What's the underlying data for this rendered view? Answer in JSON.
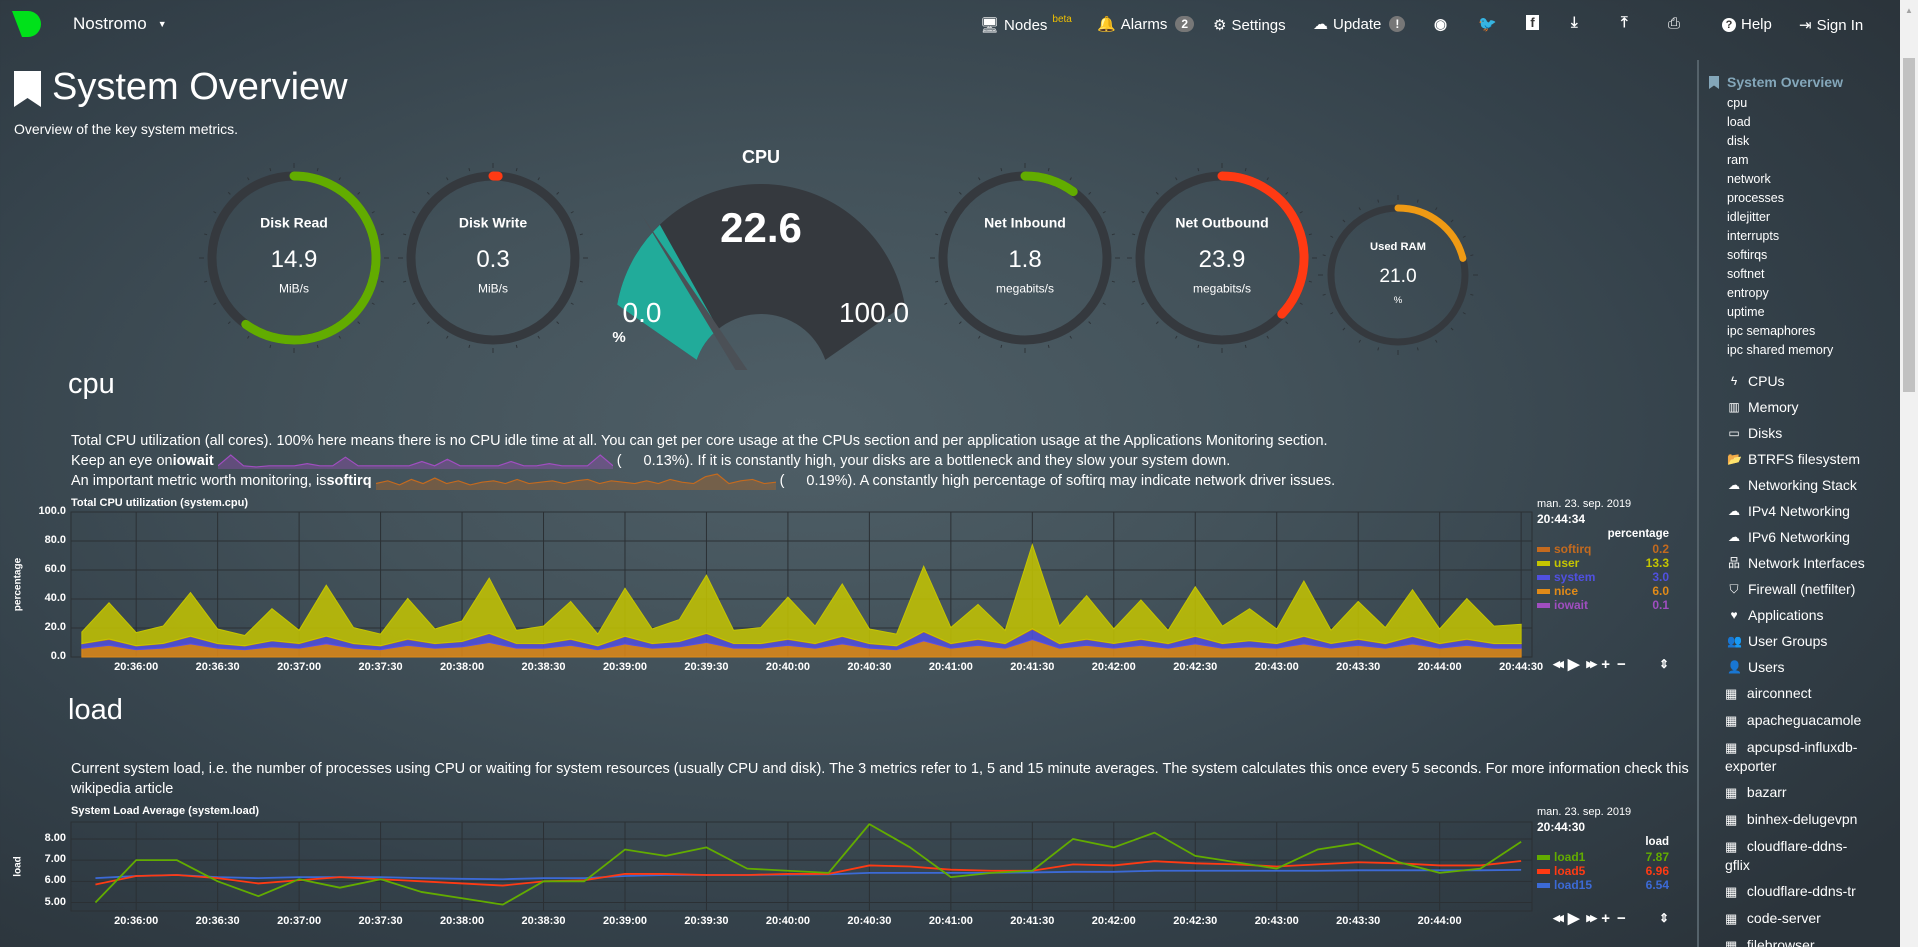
{
  "nav": {
    "host": "Nostromo",
    "items": [
      {
        "label": "Nodes",
        "sup": "beta",
        "icon": "monitor-icon"
      },
      {
        "label": "Alarms",
        "badge": "2",
        "icon": "bell-icon"
      },
      {
        "label": "Settings",
        "icon": "gear-icon"
      },
      {
        "label": "Update",
        "badge": "!",
        "icon": "cloud-download-icon"
      },
      {
        "label": "Help",
        "icon": "question-circle-icon"
      },
      {
        "label": "Sign In",
        "icon": "sign-in-icon"
      }
    ],
    "icons": [
      "github-icon",
      "twitter-icon",
      "facebook-icon",
      "download-icon",
      "upload-icon",
      "print-icon"
    ],
    "brand_color": "#00e11a"
  },
  "page": {
    "title": "System Overview",
    "subtitle": "Overview of the key system metrics."
  },
  "gauges": [
    {
      "title": "Disk Read",
      "value": "14.9",
      "units": "MiB/s",
      "fill": 0.6,
      "color": "#62ac00"
    },
    {
      "title": "Disk Write",
      "value": "0.3",
      "units": "MiB/s",
      "fill": 0.01,
      "color": "#ff3a13"
    },
    {
      "title": "Net Inbound",
      "value": "1.8",
      "units": "megabits/s",
      "fill": 0.1,
      "color": "#62ac00"
    },
    {
      "title": "Net Outbound",
      "value": "23.9",
      "units": "megabits/s",
      "fill": 0.37,
      "color": "#ff3a13"
    },
    {
      "title": "Used RAM",
      "value": "21.0",
      "units": "%",
      "fill": 0.21,
      "color": "#ef9a14"
    }
  ],
  "cpu_gauge": {
    "title": "CPU",
    "value": "22.6",
    "min": "0.0",
    "max": "100.0",
    "units": "%",
    "fill": 0.226,
    "color": "#21ab9a"
  },
  "cpu_section": {
    "heading": "cpu",
    "line1": "Total CPU utilization (all cores). 100% here means there is no CPU idle time at all. You can get per core usage at the CPUs section and per application usage at the Applications Monitoring section.",
    "line2_pre": "Keep an eye on ",
    "line2_bold": "iowait",
    "line2_val": "0.13%",
    "line2_post": "). If it is constantly high, your disks are a bottleneck and they slow your system down.",
    "line3_pre": "An important metric worth monitoring, is ",
    "line3_bold": "softirq",
    "line3_val": "0.19%",
    "line3_post": "). A constantly high percentage of softirq may indicate network driver issues.",
    "open_paren": "(",
    "iowait_sparkline": [
      0.1,
      0.6,
      0.1,
      0.05,
      0.1,
      0.1,
      0.1,
      0.2,
      0.1,
      0.1,
      0.5,
      0.1,
      0.1,
      0.1,
      0.1,
      0.1,
      0.3,
      0.1,
      0.4,
      0.1,
      0.1,
      0.1,
      0.1,
      0.3,
      0.1,
      0.1,
      0.2,
      0.1,
      0.1,
      0.1,
      0.6,
      0.1
    ],
    "softirq_sparkline": [
      0.2,
      0.3,
      0.15,
      0.35,
      0.2,
      0.4,
      0.2,
      0.3,
      0.15,
      0.25,
      0.3,
      0.2,
      0.35,
      0.2,
      0.25,
      0.3,
      0.2,
      0.3,
      0.35,
      0.2,
      0.3,
      0.25,
      0.2,
      0.3,
      0.2,
      0.35,
      0.25,
      0.2,
      0.45,
      0.55,
      0.2,
      0.3,
      0.35,
      0.2,
      0.25
    ],
    "spark_colors": {
      "iowait": "#a04ec0",
      "softirq": "#c46a1e"
    }
  },
  "load_section": {
    "heading": "load",
    "text": "Current system load, i.e. the number of processes using CPU or waiting for system resources (usually CPU and disk). The 3 metrics refer to 1, 5 and 15 minute averages. The system calculates this once every 5 seconds. For more information check this",
    "text2": "wikipedia article"
  },
  "chart_data": [
    {
      "type": "area",
      "stacked": true,
      "title": "Total CPU utilization (system.cpu)",
      "ylabel": "percentage",
      "units": "percentage",
      "ylim": [
        0,
        100
      ],
      "yticks": [
        "0.0",
        "20.0",
        "40.0",
        "60.0",
        "80.0",
        "100.0"
      ],
      "xlim": [
        "20:35:36",
        "20:44:34"
      ],
      "xticks": [
        "20:36:00",
        "20:36:30",
        "20:37:00",
        "20:37:30",
        "20:38:00",
        "20:38:30",
        "20:39:00",
        "20:39:30",
        "20:40:00",
        "20:40:30",
        "20:41:00",
        "20:41:30",
        "20:42:00",
        "20:42:30",
        "20:43:00",
        "20:43:30",
        "20:44:00",
        "20:44:30"
      ],
      "grid": true,
      "legend": {
        "date": "man. 23. sep. 2019",
        "time": "20:44:34",
        "position": "right"
      },
      "x": [
        "20:35:40",
        "20:35:50",
        "20:36:00",
        "20:36:10",
        "20:36:20",
        "20:36:30",
        "20:36:40",
        "20:36:50",
        "20:37:00",
        "20:37:10",
        "20:37:20",
        "20:37:30",
        "20:37:40",
        "20:37:50",
        "20:38:00",
        "20:38:10",
        "20:38:20",
        "20:38:30",
        "20:38:40",
        "20:38:50",
        "20:39:00",
        "20:39:10",
        "20:39:20",
        "20:39:30",
        "20:39:40",
        "20:39:50",
        "20:40:00",
        "20:40:10",
        "20:40:20",
        "20:40:30",
        "20:40:40",
        "20:40:50",
        "20:41:00",
        "20:41:10",
        "20:41:20",
        "20:41:30",
        "20:41:40",
        "20:41:50",
        "20:42:00",
        "20:42:10",
        "20:42:20",
        "20:42:30",
        "20:42:40",
        "20:42:50",
        "20:43:00",
        "20:43:10",
        "20:43:20",
        "20:43:30",
        "20:43:40",
        "20:43:50",
        "20:44:00",
        "20:44:10",
        "20:44:20",
        "20:44:30"
      ],
      "series": [
        {
          "name": "softirq",
          "color": "#c46a1e",
          "current": "0.2",
          "values": [
            0.2,
            0.3,
            0.2,
            0.2,
            0.3,
            0.2,
            0.2,
            0.2,
            0.3,
            0.2,
            0.2,
            0.2,
            0.3,
            0.2,
            0.2,
            0.3,
            0.2,
            0.2,
            0.2,
            0.2,
            0.3,
            0.2,
            0.2,
            0.3,
            0.2,
            0.2,
            0.2,
            0.2,
            0.3,
            0.2,
            0.2,
            0.3,
            0.2,
            0.2,
            0.2,
            0.4,
            0.2,
            0.2,
            0.2,
            0.2,
            0.2,
            0.3,
            0.2,
            0.2,
            0.2,
            0.3,
            0.2,
            0.2,
            0.2,
            0.3,
            0.2,
            0.2,
            0.2,
            0.2
          ]
        },
        {
          "name": "user",
          "color": "#c5c500",
          "current": "13.3",
          "values": [
            8,
            25,
            9,
            12,
            30,
            10,
            7,
            22,
            9,
            35,
            11,
            8,
            28,
            10,
            14,
            38,
            9,
            12,
            26,
            8,
            33,
            10,
            15,
            40,
            9,
            11,
            29,
            12,
            36,
            10,
            8,
            45,
            11,
            24,
            9,
            58,
            12,
            30,
            10,
            27,
            9,
            34,
            12,
            22,
            10,
            38,
            9,
            26,
            11,
            32,
            10,
            28,
            12,
            13.3
          ]
        },
        {
          "name": "system",
          "color": "#5050e0",
          "current": "3.0",
          "values": [
            3,
            4,
            2.5,
            3,
            5,
            3,
            2.5,
            4,
            3,
            5,
            3,
            2.5,
            4,
            3,
            3.5,
            6,
            3,
            3,
            4,
            2.5,
            5,
            3,
            3.5,
            6,
            3,
            3,
            4,
            3,
            5,
            3,
            2.5,
            6,
            3,
            4,
            3,
            7,
            3,
            4,
            3,
            4,
            3,
            5,
            3,
            4,
            3,
            5,
            3,
            4,
            3,
            5,
            3,
            4,
            3,
            3.0
          ]
        },
        {
          "name": "nice",
          "color": "#e08a18",
          "current": "6.0",
          "values": [
            6,
            8,
            5,
            6,
            9,
            6,
            5,
            7,
            6,
            9,
            6,
            5,
            8,
            6,
            7,
            10,
            6,
            6,
            8,
            5,
            9,
            6,
            7,
            10,
            6,
            6,
            8,
            6,
            9,
            6,
            5,
            11,
            6,
            8,
            6,
            12,
            6,
            8,
            6,
            8,
            6,
            9,
            6,
            7,
            6,
            9,
            6,
            8,
            6,
            9,
            6,
            8,
            6,
            6.0
          ]
        },
        {
          "name": "iowait",
          "color": "#a04ec0",
          "current": "0.1",
          "values": [
            0.1,
            0.1,
            0.1,
            0.2,
            0.1,
            0.1,
            0.1,
            0.1,
            0.1,
            0.3,
            0.1,
            0.1,
            0.1,
            0.1,
            0.1,
            0.1,
            0.2,
            0.1,
            0.1,
            0.1,
            0.1,
            0.1,
            0.1,
            0.1,
            0.2,
            0.1,
            0.1,
            0.1,
            0.1,
            0.1,
            0.1,
            0.3,
            0.1,
            0.1,
            0.1,
            0.1,
            0.1,
            0.1,
            0.2,
            0.1,
            0.1,
            0.1,
            0.1,
            0.1,
            0.1,
            0.1,
            0.2,
            0.1,
            0.1,
            0.1,
            0.1,
            0.1,
            0.1,
            0.1
          ]
        }
      ]
    },
    {
      "type": "line",
      "title": "System Load Average (system.load)",
      "ylabel": "load",
      "units": "load",
      "ylim": [
        4.6,
        8.8
      ],
      "yticks": [
        "5.00",
        "6.00",
        "7.00",
        "8.00"
      ],
      "xlim": [
        "20:35:36",
        "20:44:34"
      ],
      "xticks": [
        "20:36:00",
        "20:36:30",
        "20:37:00",
        "20:37:30",
        "20:38:00",
        "20:38:30",
        "20:39:00",
        "20:39:30",
        "20:40:00",
        "20:40:30",
        "20:41:00",
        "20:41:30",
        "20:42:00",
        "20:42:30",
        "20:43:00",
        "20:43:30",
        "20:44:00"
      ],
      "grid": true,
      "legend": {
        "date": "man. 23. sep. 2019",
        "time": "20:44:30",
        "position": "right"
      },
      "x": [
        "20:35:45",
        "20:36:00",
        "20:36:15",
        "20:36:30",
        "20:36:45",
        "20:37:00",
        "20:37:15",
        "20:37:30",
        "20:37:45",
        "20:38:00",
        "20:38:15",
        "20:38:30",
        "20:38:45",
        "20:39:00",
        "20:39:15",
        "20:39:30",
        "20:39:45",
        "20:40:00",
        "20:40:15",
        "20:40:30",
        "20:40:45",
        "20:41:00",
        "20:41:15",
        "20:41:30",
        "20:41:45",
        "20:42:00",
        "20:42:15",
        "20:42:30",
        "20:42:45",
        "20:43:00",
        "20:43:15",
        "20:43:30",
        "20:43:45",
        "20:44:00",
        "20:44:15",
        "20:44:30"
      ],
      "series": [
        {
          "name": "load1",
          "color": "#62ac00",
          "current": "7.87",
          "values": [
            5.0,
            7.0,
            7.0,
            6.0,
            5.3,
            6.1,
            5.7,
            6.1,
            5.5,
            5.2,
            4.9,
            6.0,
            6.0,
            7.5,
            7.2,
            7.6,
            6.6,
            6.5,
            6.4,
            8.7,
            7.6,
            6.2,
            6.4,
            6.5,
            8.0,
            7.6,
            8.3,
            7.2,
            6.9,
            6.6,
            7.5,
            7.8,
            6.9,
            6.4,
            6.6,
            7.87
          ]
        },
        {
          "name": "load5",
          "color": "#ff3a13",
          "current": "6.96",
          "values": [
            5.85,
            6.25,
            6.3,
            6.15,
            5.9,
            6.05,
            6.2,
            6.1,
            6.0,
            5.9,
            5.8,
            6.0,
            6.05,
            6.35,
            6.35,
            6.3,
            6.3,
            6.35,
            6.35,
            6.75,
            6.7,
            6.55,
            6.5,
            6.5,
            6.8,
            6.75,
            6.95,
            6.85,
            6.8,
            6.7,
            6.8,
            6.9,
            6.85,
            6.75,
            6.75,
            6.96
          ]
        },
        {
          "name": "load15",
          "color": "#3c6ad6",
          "current": "6.54",
          "values": [
            6.15,
            6.25,
            6.3,
            6.2,
            6.15,
            6.2,
            6.2,
            6.2,
            6.15,
            6.12,
            6.1,
            6.15,
            6.15,
            6.25,
            6.3,
            6.3,
            6.3,
            6.32,
            6.33,
            6.4,
            6.4,
            6.4,
            6.4,
            6.42,
            6.45,
            6.45,
            6.5,
            6.5,
            6.5,
            6.5,
            6.5,
            6.52,
            6.52,
            6.52,
            6.52,
            6.54
          ]
        }
      ]
    }
  ],
  "chart_controls": [
    "rewind-icon",
    "play-icon",
    "fast-forward-icon",
    "zoom-in-icon",
    "zoom-out-icon",
    "resize-icon"
  ],
  "sidebar": {
    "title": "System Overview",
    "sub_items": [
      "cpu",
      "load",
      "disk",
      "ram",
      "network",
      "processes",
      "idlejitter",
      "interrupts",
      "softirqs",
      "softnet",
      "entropy",
      "uptime",
      "ipc semaphores",
      "ipc shared memory"
    ],
    "sections": [
      {
        "label": "CPUs",
        "icon": "bolt-icon"
      },
      {
        "label": "Memory",
        "icon": "memory-icon"
      },
      {
        "label": "Disks",
        "icon": "hdd-icon"
      },
      {
        "label": "BTRFS filesystem",
        "icon": "folder-open-icon"
      },
      {
        "label": "Networking Stack",
        "icon": "cloud-icon"
      },
      {
        "label": "IPv4 Networking",
        "icon": "cloud-icon"
      },
      {
        "label": "IPv6 Networking",
        "icon": "cloud-icon"
      },
      {
        "label": "Network Interfaces",
        "icon": "sitemap-icon"
      },
      {
        "label": "Firewall (netfilter)",
        "icon": "shield-icon"
      },
      {
        "label": "Applications",
        "icon": "heartbeat-icon"
      },
      {
        "label": "User Groups",
        "icon": "users-icon"
      },
      {
        "label": "Users",
        "icon": "user-icon"
      }
    ],
    "apps": [
      "airconnect",
      "apacheguacamole",
      "apcupsd-influxdb-exporter",
      "bazarr",
      "binhex-delugevpn",
      "cloudflare-ddns-gflix",
      "cloudflare-ddns-tr",
      "code-server",
      "filebrowser"
    ]
  }
}
